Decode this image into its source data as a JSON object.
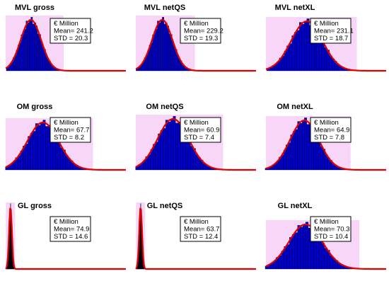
{
  "chart_data": [
    {
      "type": "histogram",
      "title": "MVL gross",
      "box": [
        "€ Million",
        "Mean= 241.2",
        "STD = 20.3"
      ],
      "mean": 241.2,
      "std": 20.3
    },
    {
      "type": "histogram",
      "title": "MVL netQS",
      "box": [
        "€ Million",
        "Mean= 229.2",
        "STD = 19.3"
      ],
      "mean": 229.2,
      "std": 19.3
    },
    {
      "type": "histogram",
      "title": "MVL netXL",
      "box": [
        "€ Million",
        "Mean= 231.1",
        "STD = 18.7"
      ],
      "mean": 231.1,
      "std": 18.7
    },
    {
      "type": "histogram",
      "title": "OM gross",
      "box": [
        "€ Million",
        "Mean= 67.7",
        "STD = 8.2"
      ],
      "mean": 67.7,
      "std": 8.2
    },
    {
      "type": "histogram",
      "title": "OM netQS",
      "box": [
        "€ Million",
        "Mean= 60.9",
        "STD = 7.4"
      ],
      "mean": 60.9,
      "std": 7.4
    },
    {
      "type": "histogram",
      "title": "OM netXL",
      "box": [
        "€ Million",
        "Mean= 64.9",
        "STD = 7.8"
      ],
      "mean": 64.9,
      "std": 7.8
    },
    {
      "type": "histogram",
      "title": "GL gross",
      "box": [
        "€ Million",
        "Mean= 74.9",
        "STD = 14.6"
      ],
      "mean": 74.9,
      "std": 14.6
    },
    {
      "type": "histogram",
      "title": "GL netQS",
      "box": [
        "€ Million",
        "Mean= 63.7",
        "STD = 12.4"
      ],
      "mean": 63.7,
      "std": 12.4
    },
    {
      "type": "histogram",
      "title": "GL netXL",
      "box": [
        "€ Million",
        "Mean= 70.3",
        "STD = 10.4"
      ],
      "mean": 70.3,
      "std": 10.4
    }
  ],
  "colors": {
    "bar": "#0000cc",
    "bar_edge": "#000000",
    "fit_curve": "#e00000",
    "band": "#f7d6f7"
  }
}
